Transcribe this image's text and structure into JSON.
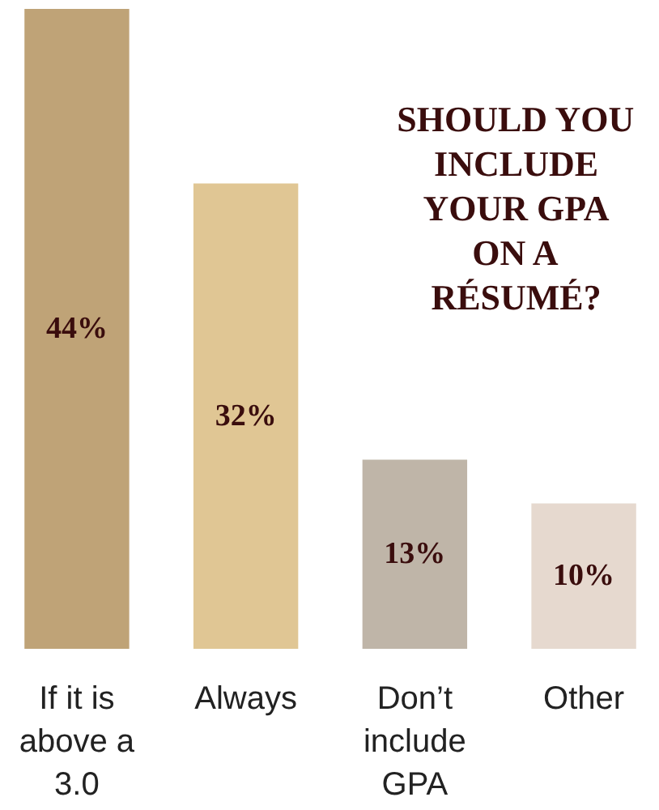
{
  "chart_data": {
    "type": "bar",
    "title": "SHOULD YOU INCLUDE YOUR GPA ON A RÉSUMÉ?",
    "categories": [
      "If it is above a 3.0",
      "Always",
      "Don’t include GPA",
      "Other"
    ],
    "values": [
      44,
      32,
      13,
      10
    ],
    "value_labels": [
      "44%",
      "32%",
      "13%",
      "10%"
    ],
    "colors": [
      "#bfa377",
      "#e0c694",
      "#bfb5a8",
      "#e6d9cf"
    ],
    "grid": false,
    "tick_labels": "x"
  }
}
